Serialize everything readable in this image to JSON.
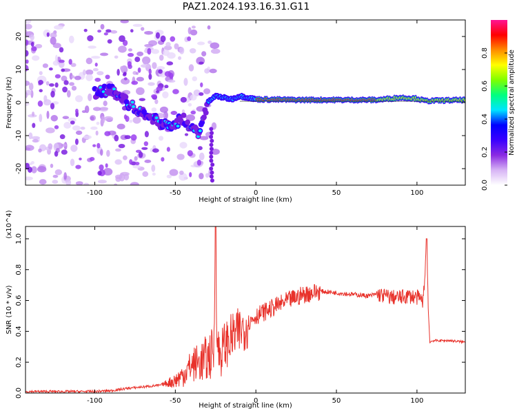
{
  "chart_data": [
    {
      "type": "heatmap",
      "title": "PAZ1.2024.193.16.31.G11",
      "xlabel": "Height of straight line (km)",
      "ylabel": "Frequency (Hz)",
      "xlim": [
        -143,
        130
      ],
      "ylim": [
        -25,
        25
      ],
      "xticks": [
        -100,
        -50,
        0,
        50,
        100
      ],
      "yticks": [
        -20,
        -10,
        0,
        10,
        20
      ],
      "colorbar": {
        "label": "Normalized spectral amplitude",
        "range": [
          0,
          1
        ],
        "ticks": [
          "0.0",
          "0.2",
          "0.4",
          "0.6",
          "0.8"
        ],
        "colors": [
          "#ffffff",
          "#d7b4f5",
          "#8a2be2",
          "#3a00ff",
          "#0000ff",
          "#00e5ff",
          "#00ff7f",
          "#7fff00",
          "#ffff00",
          "#ff8c00",
          "#ff0000",
          "#ff1493"
        ]
      },
      "ridge": {
        "description_points": [
          [
            -100,
            3
          ],
          [
            -90,
            4
          ],
          [
            -85,
            2
          ],
          [
            -75,
            -2
          ],
          [
            -70,
            -3
          ],
          [
            -60,
            -6
          ],
          [
            -55,
            -7
          ],
          [
            -50,
            -6
          ],
          [
            -45,
            -5
          ],
          [
            -40,
            -8
          ],
          [
            -35,
            -9
          ],
          [
            -30,
            0
          ],
          [
            -25,
            2
          ],
          [
            -20,
            1.5
          ],
          [
            -15,
            1
          ],
          [
            -10,
            2
          ],
          [
            -5,
            1.5
          ],
          [
            0,
            1
          ],
          [
            25,
            0.8
          ],
          [
            50,
            0.8
          ],
          [
            75,
            0.8
          ],
          [
            90,
            1.5
          ],
          [
            100,
            1.2
          ],
          [
            105,
            0.5
          ],
          [
            130,
            0.8
          ]
        ]
      },
      "grid": false
    },
    {
      "type": "line",
      "title": "",
      "xlabel": "Height of straight line (km)",
      "ylabel": "SNR (10 * v/v)",
      "multiplier": "(x10^4)",
      "xlim": [
        -143,
        130
      ],
      "ylim": [
        0,
        1.08
      ],
      "xticks": [
        -100,
        -50,
        0,
        50,
        100
      ],
      "yticks": [
        "0.0",
        "0.2",
        "0.4",
        "0.6",
        "0.8",
        "1.0"
      ],
      "series": [
        {
          "color": "#e8312a",
          "x": [
            -143,
            -120,
            -100,
            -90,
            -80,
            -70,
            -60,
            -50,
            -45,
            -40,
            -35,
            -30,
            -28,
            -26,
            -25,
            -24,
            -22,
            -20,
            -15,
            -10,
            -5,
            0,
            10,
            20,
            30,
            40,
            50,
            60,
            70,
            75,
            80,
            85,
            90,
            95,
            100,
            104,
            106,
            107,
            108,
            110,
            120,
            130
          ],
          "y": [
            0.01,
            0.01,
            0.01,
            0.015,
            0.03,
            0.04,
            0.05,
            0.08,
            0.12,
            0.18,
            0.2,
            0.22,
            0.25,
            0.28,
            1.08,
            0.3,
            0.25,
            0.3,
            0.36,
            0.4,
            0.45,
            0.5,
            0.55,
            0.6,
            0.64,
            0.66,
            0.65,
            0.64,
            0.63,
            0.64,
            0.63,
            0.62,
            0.62,
            0.63,
            0.62,
            0.6,
            1.0,
            0.55,
            0.33,
            0.34,
            0.34,
            0.33
          ]
        }
      ],
      "grid": false
    }
  ]
}
